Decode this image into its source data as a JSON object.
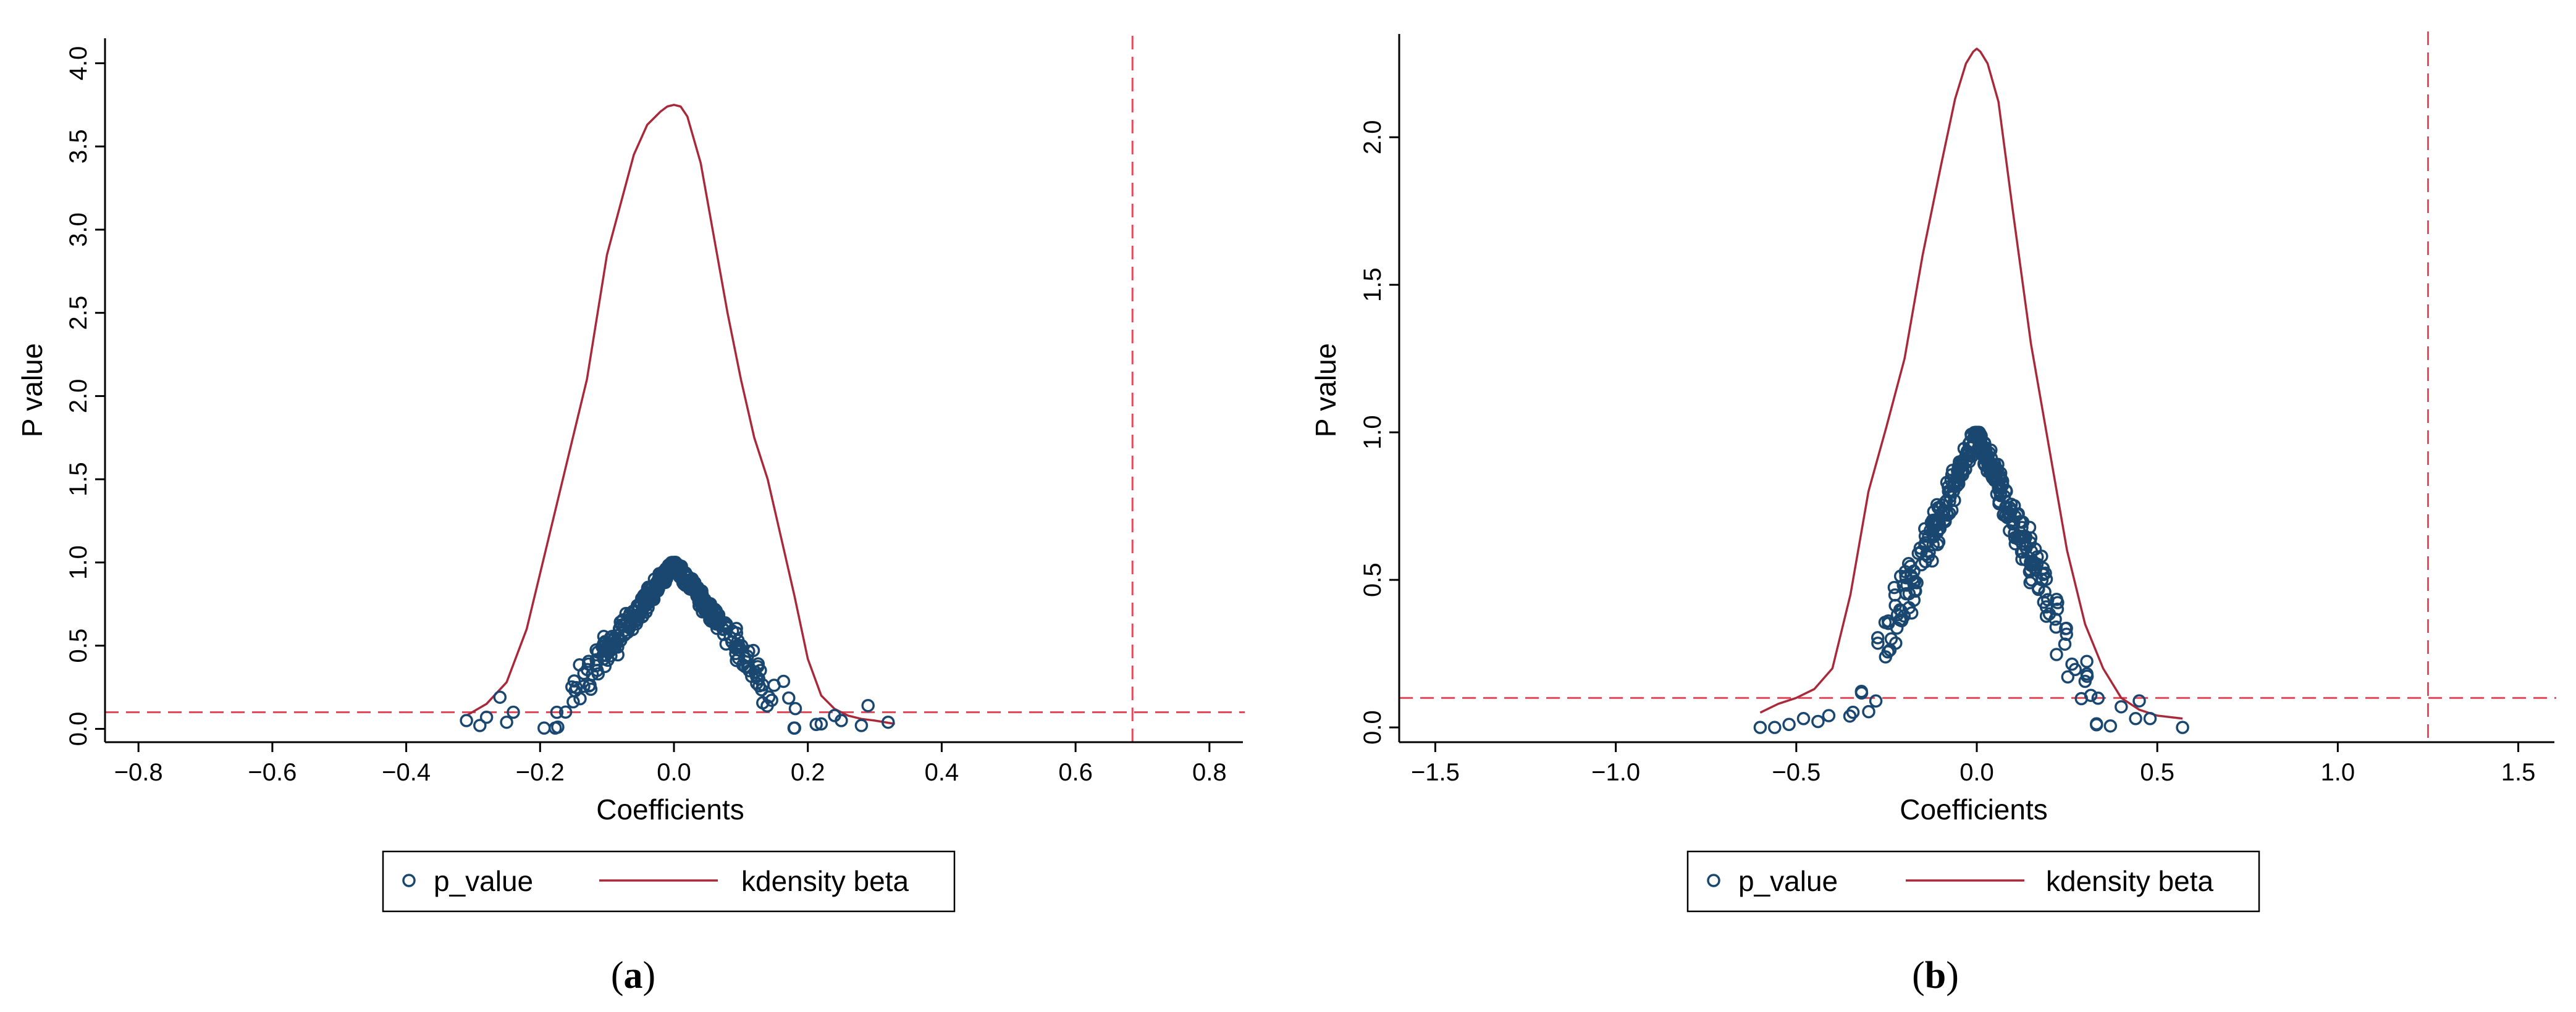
{
  "figure": {
    "ref_color": "#e8485a",
    "point_color": "#1a476f",
    "kde_color": "#a8293a"
  },
  "chart_data": [
    {
      "type": "scatter",
      "panel_label": "a",
      "xlabel": "Coefficients",
      "ylabel": "P value",
      "xlim": [
        -0.85,
        0.85
      ],
      "ylim": [
        -0.08,
        4.15
      ],
      "xticks": [
        -0.8,
        -0.6,
        -0.4,
        -0.2,
        0.0,
        0.2,
        0.4,
        0.6,
        0.8
      ],
      "xtick_labels": [
        "−0.8",
        "−0.6",
        "−0.4",
        "−0.2",
        "0.0",
        "0.2",
        "0.4",
        "0.6",
        "0.8"
      ],
      "yticks": [
        0.0,
        0.5,
        1.0,
        1.5,
        2.0,
        2.5,
        3.0,
        3.5,
        4.0
      ],
      "ytick_labels": [
        "0.0",
        "0.5",
        "1.0",
        "1.5",
        "2.0",
        "2.5",
        "3.0",
        "3.5",
        "4.0"
      ],
      "reference_lines": {
        "y": 0.1,
        "x": 0.685
      },
      "legend": [
        {
          "label": "p_value",
          "kind": "marker"
        },
        {
          "label": "kdensity beta",
          "kind": "line"
        }
      ],
      "series": [
        {
          "name": "kdensity beta",
          "kind": "line",
          "x": [
            -0.31,
            -0.28,
            -0.25,
            -0.22,
            -0.19,
            -0.16,
            -0.13,
            -0.1,
            -0.08,
            -0.06,
            -0.04,
            -0.02,
            -0.01,
            0.0,
            0.01,
            0.02,
            0.04,
            0.06,
            0.08,
            0.1,
            0.12,
            0.14,
            0.16,
            0.18,
            0.2,
            0.22,
            0.24,
            0.26,
            0.28,
            0.3,
            0.33
          ],
          "y": [
            0.08,
            0.15,
            0.28,
            0.6,
            1.1,
            1.6,
            2.1,
            2.85,
            3.15,
            3.45,
            3.63,
            3.71,
            3.74,
            3.75,
            3.74,
            3.68,
            3.4,
            2.95,
            2.5,
            2.1,
            1.75,
            1.5,
            1.15,
            0.8,
            0.42,
            0.2,
            0.12,
            0.08,
            0.06,
            0.05,
            0.03
          ]
        },
        {
          "name": "p_value",
          "kind": "scatter",
          "cone_half_width": 0.19,
          "n_points": 380,
          "outliers": [
            {
              "x": -0.31,
              "y": 0.05
            },
            {
              "x": -0.29,
              "y": 0.02
            },
            {
              "x": -0.28,
              "y": 0.07
            },
            {
              "x": -0.26,
              "y": 0.19
            },
            {
              "x": -0.25,
              "y": 0.04
            },
            {
              "x": -0.24,
              "y": 0.1
            },
            {
              "x": 0.22,
              "y": 0.03
            },
            {
              "x": 0.24,
              "y": 0.08
            },
            {
              "x": 0.25,
              "y": 0.05
            },
            {
              "x": 0.28,
              "y": 0.02
            },
            {
              "x": 0.29,
              "y": 0.14
            },
            {
              "x": 0.32,
              "y": 0.04
            }
          ]
        }
      ]
    },
    {
      "type": "scatter",
      "panel_label": "b",
      "xlabel": "Coefficients",
      "ylabel": "P value",
      "xlim": [
        -1.6,
        1.6
      ],
      "ylim": [
        -0.05,
        2.35
      ],
      "xticks": [
        -1.5,
        -1.0,
        -0.5,
        0.0,
        0.5,
        1.0,
        1.5
      ],
      "xtick_labels": [
        "−1.5",
        "−1.0",
        "−0.5",
        "0.0",
        "0.5",
        "1.0",
        "1.5"
      ],
      "yticks": [
        0.0,
        0.5,
        1.0,
        1.5,
        2.0
      ],
      "ytick_labels": [
        "0.0",
        "0.5",
        "1.0",
        "1.5",
        "2.0"
      ],
      "reference_lines": {
        "y": 0.1,
        "x": 1.25
      },
      "legend": [
        {
          "label": "p_value",
          "kind": "marker"
        },
        {
          "label": "kdensity beta",
          "kind": "line"
        }
      ],
      "series": [
        {
          "name": "kdensity beta",
          "kind": "line",
          "x": [
            -0.6,
            -0.55,
            -0.5,
            -0.45,
            -0.4,
            -0.35,
            -0.3,
            -0.25,
            -0.2,
            -0.15,
            -0.1,
            -0.06,
            -0.03,
            -0.01,
            0.0,
            0.01,
            0.03,
            0.06,
            0.1,
            0.15,
            0.2,
            0.25,
            0.3,
            0.35,
            0.4,
            0.45,
            0.5,
            0.57
          ],
          "y": [
            0.05,
            0.08,
            0.1,
            0.13,
            0.2,
            0.45,
            0.8,
            1.02,
            1.25,
            1.6,
            1.9,
            2.13,
            2.25,
            2.29,
            2.3,
            2.29,
            2.25,
            2.12,
            1.75,
            1.3,
            0.95,
            0.6,
            0.35,
            0.2,
            0.1,
            0.06,
            0.04,
            0.03
          ]
        },
        {
          "name": "p_value",
          "kind": "scatter",
          "cone_half_width": 0.36,
          "n_points": 340,
          "outliers": [
            {
              "x": -0.6,
              "y": 0.0
            },
            {
              "x": -0.56,
              "y": 0.0
            },
            {
              "x": -0.52,
              "y": 0.01
            },
            {
              "x": -0.48,
              "y": 0.03
            },
            {
              "x": -0.44,
              "y": 0.02
            },
            {
              "x": -0.41,
              "y": 0.04
            },
            {
              "x": 0.4,
              "y": 0.07
            },
            {
              "x": 0.44,
              "y": 0.03
            },
            {
              "x": 0.45,
              "y": 0.09
            },
            {
              "x": 0.48,
              "y": 0.03
            },
            {
              "x": 0.57,
              "y": 0.0
            }
          ]
        }
      ]
    }
  ]
}
